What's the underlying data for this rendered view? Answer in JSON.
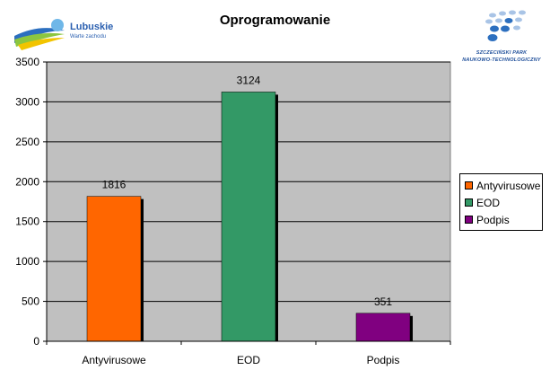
{
  "logos": {
    "left": {
      "brand": "Lubuskie",
      "tagline": "Warte zachodu"
    },
    "right": {
      "line1": "SZCZECIŃSKI PARK",
      "line2": "NAUKOWO-TECHNOLOGICZNY"
    }
  },
  "chart_data": {
    "type": "bar",
    "title": "Oprogramowanie",
    "categories": [
      "Antyvirusowe",
      "EOD",
      "Podpis"
    ],
    "values": [
      1816,
      3124,
      351
    ],
    "data_labels": [
      "1816",
      "3124",
      "351"
    ],
    "colors": [
      "#ff6600",
      "#339966",
      "#800080"
    ],
    "ylim": [
      0,
      3500
    ],
    "yticks": [
      0,
      500,
      1000,
      1500,
      2000,
      2500,
      3000,
      3500
    ],
    "ytick_labels": [
      "0",
      "500",
      "1000",
      "1500",
      "2000",
      "2500",
      "3000",
      "3500"
    ],
    "grid": true,
    "plot_background": "#c0c0c0",
    "legend": {
      "position": "right",
      "entries": [
        "Antyvirusowe",
        "EOD",
        "Podpis"
      ]
    }
  }
}
